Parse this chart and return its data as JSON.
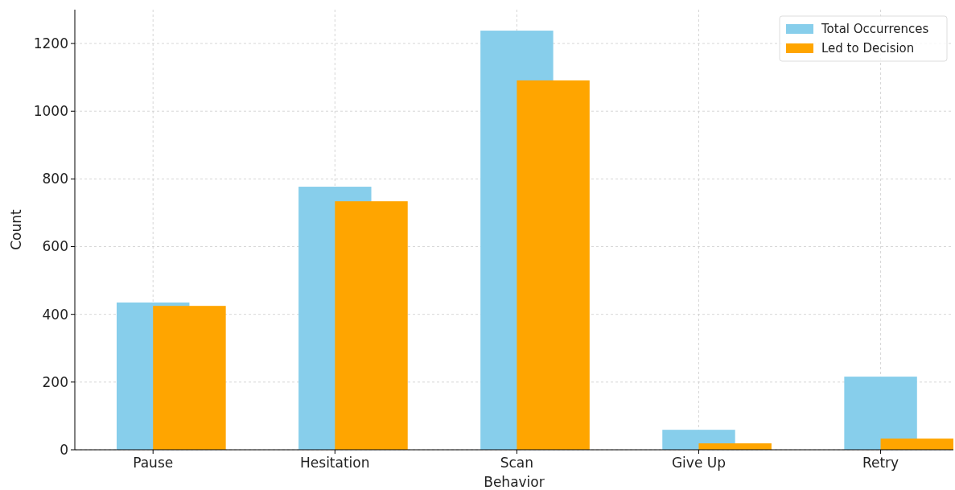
{
  "chart_data": {
    "type": "bar",
    "xlabel": "Behavior",
    "ylabel": "Count",
    "categories": [
      "Pause",
      "Hesitation",
      "Scan",
      "Give Up",
      "Retry"
    ],
    "series": [
      {
        "name": "Total Occurrences",
        "color": "#87ceeb",
        "values": [
          435,
          777,
          1238,
          59,
          216
        ]
      },
      {
        "name": "Led to Decision",
        "color": "#ffa500",
        "values": [
          425,
          734,
          1091,
          19,
          33
        ]
      }
    ],
    "ylim": [
      0,
      1300
    ],
    "yticks": [
      0,
      200,
      400,
      600,
      800,
      1000,
      1200
    ],
    "grid": true,
    "legend": "top right"
  }
}
